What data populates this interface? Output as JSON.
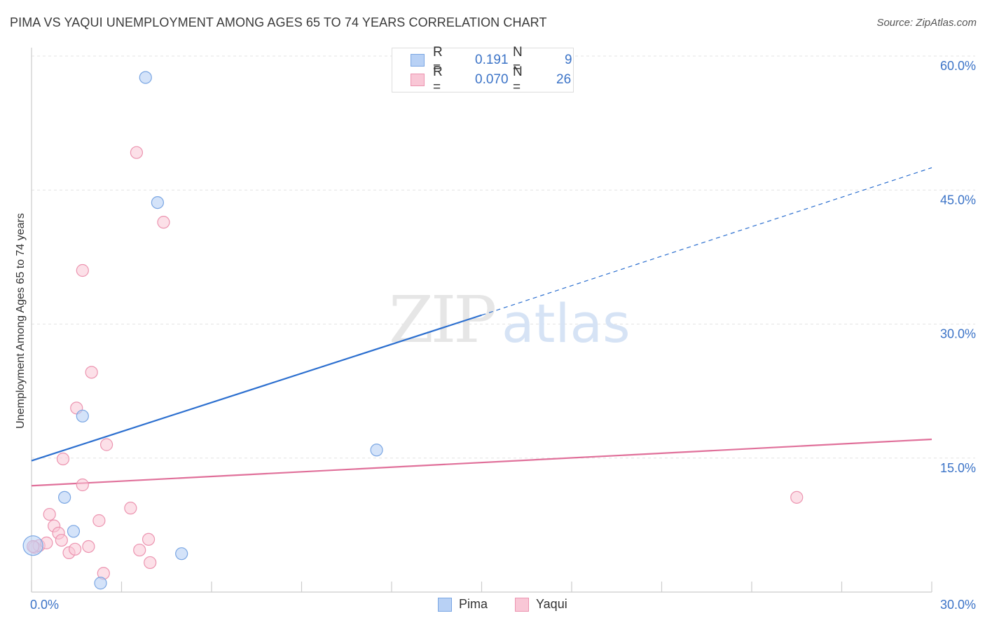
{
  "title": "PIMA VS YAQUI UNEMPLOYMENT AMONG AGES 65 TO 74 YEARS CORRELATION CHART",
  "source": "Source: ZipAtlas.com",
  "watermark": {
    "zip": "ZIP",
    "atlas": "atlas"
  },
  "legend": {
    "pima": {
      "r_label": "R =",
      "r_value": "0.191",
      "n_label": "N =",
      "n_value": "9"
    },
    "yaqui": {
      "r_label": "R =",
      "r_value": "0.070",
      "n_label": "N =",
      "n_value": "26"
    }
  },
  "bottom_legend": {
    "pima": "Pima",
    "yaqui": "Yaqui"
  },
  "colors": {
    "pima_fill": "#b8d1f5",
    "pima_stroke": "#7aa6e3",
    "pima_line": "#2c6fcf",
    "yaqui_fill": "#f9c7d6",
    "yaqui_stroke": "#ec94b0",
    "yaqui_line": "#e0709a",
    "axis_text": "#3b73c7",
    "grid": "#e3e3e3"
  },
  "chart_data": {
    "type": "scatter",
    "title": "PIMA VS YAQUI UNEMPLOYMENT AMONG AGES 65 TO 74 YEARS CORRELATION CHART",
    "xlabel": "",
    "ylabel": "Unemployment Among Ages 65 to 74 years",
    "xlim": [
      0,
      30
    ],
    "ylim": [
      0,
      60
    ],
    "x_tick_labels": [
      "0.0%",
      "30.0%"
    ],
    "y_ticks": [
      15,
      30,
      45,
      60
    ],
    "y_tick_labels": [
      "15.0%",
      "30.0%",
      "45.0%",
      "60.0%"
    ],
    "grid": true,
    "series": [
      {
        "name": "Pima",
        "r": 0.191,
        "n": 9,
        "points": [
          [
            0.05,
            5.2
          ],
          [
            1.4,
            6.8
          ],
          [
            1.1,
            10.6
          ],
          [
            1.7,
            19.7
          ],
          [
            2.3,
            1.0
          ],
          [
            3.8,
            57.6
          ],
          [
            4.2,
            43.6
          ],
          [
            5.0,
            4.3
          ],
          [
            11.5,
            15.9
          ]
        ],
        "trend": {
          "x0": 0,
          "y0": 14.7,
          "x1": 15,
          "y1": 31.0,
          "dashed_to_x": 30,
          "dashed_to_y": 47.5
        }
      },
      {
        "name": "Yaqui",
        "r": 0.07,
        "n": 26,
        "points": [
          [
            0.1,
            5.0
          ],
          [
            0.25,
            5.2
          ],
          [
            0.5,
            5.5
          ],
          [
            0.6,
            8.7
          ],
          [
            0.75,
            7.4
          ],
          [
            0.9,
            6.6
          ],
          [
            1.0,
            5.8
          ],
          [
            1.25,
            4.4
          ],
          [
            1.45,
            4.8
          ],
          [
            1.5,
            20.6
          ],
          [
            1.7,
            12.0
          ],
          [
            1.7,
            36.0
          ],
          [
            1.9,
            5.1
          ],
          [
            2.0,
            24.6
          ],
          [
            2.25,
            8.0
          ],
          [
            2.4,
            2.1
          ],
          [
            2.5,
            16.5
          ],
          [
            1.05,
            14.9
          ],
          [
            3.3,
            9.4
          ],
          [
            3.5,
            49.2
          ],
          [
            3.6,
            4.7
          ],
          [
            3.9,
            5.9
          ],
          [
            3.95,
            3.3
          ],
          [
            4.4,
            41.4
          ],
          [
            25.5,
            10.6
          ],
          [
            0.05,
            5.1
          ]
        ],
        "trend": {
          "x0": 0,
          "y0": 11.9,
          "x1": 30,
          "y1": 17.1
        }
      }
    ]
  }
}
